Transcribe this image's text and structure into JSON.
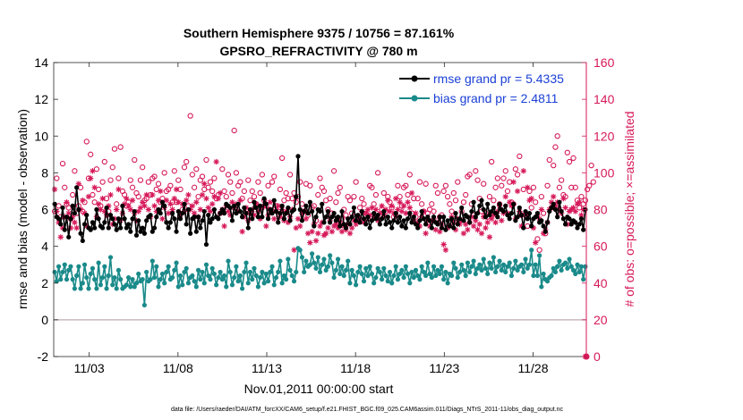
{
  "chart_data": {
    "type": "line",
    "title_line1": "Southern Hemisphere 9375 / 10756 = 87.161%",
    "title_line2": "GPSRO_REFRACTIVITY @ 780 m",
    "xlabel": "Nov.01,2011 00:00:00 start",
    "ylabel_left": "rmse and bias (model - observation)",
    "ylabel_right": "# of obs: o=possible; ×=assimilated",
    "footnote": "data file: /Users/raeder/DAI/ATM_forcXX/CAM6_setup/f.e21.FHIST_BGC.f09_025.CAM6assim.011/Diags_NTrS_2011-11/obs_diag_output.nc",
    "xlim": [
      0.0,
      30.0
    ],
    "ylim_left": [
      -2,
      14
    ],
    "ylim_right": [
      0,
      160
    ],
    "x_ticks": [
      2,
      7,
      12,
      17,
      22,
      27
    ],
    "x_tick_labels": [
      "11/03",
      "11/08",
      "11/13",
      "11/18",
      "11/23",
      "11/28"
    ],
    "y_left_ticks": [
      -2,
      0,
      2,
      4,
      6,
      8,
      10,
      12,
      14
    ],
    "y_right_ticks": [
      0,
      20,
      40,
      60,
      80,
      100,
      120,
      140,
      160
    ],
    "grid": false,
    "legend_position": "top-right",
    "colors": {
      "rmse": "#000000",
      "bias": "#1a8a8a",
      "obs": "#d6195a",
      "zero_line": "#c8b8c0",
      "axis": "#262626",
      "legend_text": "#1a3fd6"
    },
    "series": [
      {
        "name": "rmse grand pr = 5.4335",
        "key": "rmse",
        "axis": "left",
        "values": [
          6.3,
          5.6,
          5.5,
          5.2,
          6.1,
          4.9,
          5.6,
          4.5,
          5.5,
          6.2,
          5.8,
          7.2,
          6.0,
          4.7,
          4.3,
          5.2,
          5.7,
          5.0,
          4.9,
          5.3,
          5.0,
          6.0,
          5.5,
          5.1,
          5.0,
          5.3,
          6.1,
          5.0,
          5.7,
          5.5,
          5.2,
          4.9,
          5.5,
          5.0,
          6.2,
          5.5,
          5.0,
          5.2,
          4.8,
          5.5,
          5.9,
          4.6,
          5.4,
          4.8,
          5.0,
          4.7,
          5.4,
          5.6,
          5.7,
          4.8,
          5.0,
          5.6,
          6.0,
          5.8,
          6.4,
          6.2,
          5.3,
          5.0,
          5.3,
          5.8,
          5.5,
          4.8,
          5.9,
          5.5,
          5.8,
          6.3,
          5.2,
          6.0,
          4.7,
          5.5,
          5.6,
          4.8,
          5.6,
          5.0,
          5.4,
          5.9,
          4.1,
          5.7,
          5.3,
          5.5,
          6.0,
          5.6,
          5.5,
          5.8,
          6.0,
          5.8,
          6.3,
          6.2,
          6.1,
          5.4,
          6.2,
          5.8,
          6.3,
          5.9,
          5.6,
          6.1,
          5.8,
          5.0,
          6.0,
          5.5,
          6.4,
          6.1,
          5.6,
          6.2,
          5.6,
          6.6,
          6.3,
          5.5,
          6.0,
          5.8,
          6.5,
          5.9,
          5.3,
          5.8,
          6.2,
          5.5,
          5.8,
          6.1,
          5.4,
          5.9,
          6.0,
          6.7,
          8.9,
          6.0,
          5.4,
          5.9,
          6.2,
          5.8,
          6.4,
          5.9,
          5.1,
          5.6,
          6.0,
          5.9,
          6.3,
          5.3,
          5.6,
          5.9,
          5.3,
          5.6,
          5.8,
          5.4,
          5.6,
          5.1,
          5.9,
          5.2,
          5.0,
          5.5,
          5.2,
          5.6,
          6.1,
          5.4,
          5.7,
          5.3,
          5.9,
          5.5,
          5.2,
          5.6,
          5.0,
          5.4,
          5.8,
          5.5,
          5.7,
          5.2,
          5.5,
          5.9,
          5.2,
          5.6,
          5.3,
          5.0,
          5.4,
          5.8,
          5.3,
          5.6,
          5.1,
          5.4,
          5.0,
          5.5,
          5.8,
          5.3,
          5.6,
          5.2,
          5.0,
          5.4,
          5.9,
          5.5,
          5.2,
          5.6,
          5.4,
          5.0,
          5.6,
          5.3,
          5.2,
          5.6,
          5.0,
          5.6,
          4.9,
          5.4,
          5.1,
          5.5,
          5.0,
          5.8,
          5.2,
          5.5,
          6.1,
          5.4,
          5.7,
          5.6,
          5.3,
          5.9,
          6.4,
          5.6,
          5.8,
          6.2,
          6.5,
          6.0,
          5.6,
          6.3,
          5.7,
          5.9,
          6.1,
          5.8,
          5.6,
          6.3,
          6.0,
          5.9,
          6.2,
          5.7,
          5.5,
          5.8,
          6.3,
          5.4,
          5.6,
          6.1,
          5.7,
          5.0,
          5.9,
          5.5,
          5.8,
          5.1,
          5.5,
          5.6,
          5.8,
          5.3,
          5.4,
          5.1,
          4.8,
          5.3,
          5.9,
          6.1,
          6.3,
          6.0,
          5.6,
          6.4,
          5.9,
          5.5,
          5.2,
          5.6,
          5.5,
          5.2,
          5.4,
          5.3,
          5.0,
          5.2,
          5.5,
          4.9,
          6.0
        ]
      },
      {
        "name": "bias grand pr = 2.4811",
        "key": "bias",
        "axis": "left",
        "values": [
          2.6,
          2.1,
          2.9,
          2.2,
          2.6,
          3.0,
          2.2,
          2.7,
          2.9,
          2.2,
          1.7,
          2.4,
          2.9,
          1.7,
          2.0,
          3.0,
          2.3,
          1.7,
          2.5,
          2.8,
          2.2,
          1.7,
          3.1,
          1.9,
          2.3,
          2.9,
          1.7,
          2.4,
          3.4,
          1.9,
          2.3,
          1.7,
          2.7,
          2.2,
          1.7,
          1.8,
          1.9,
          2.3,
          1.8,
          2.2,
          1.8,
          2.0,
          2.5,
          2.1,
          2.2,
          0.8,
          2.6,
          2.1,
          2.2,
          3.2,
          2.3,
          2.9,
          1.8,
          2.2,
          2.5,
          2.0,
          2.6,
          2.9,
          2.2,
          2.3,
          2.7,
          3.1,
          1.8,
          2.4,
          1.9,
          2.6,
          2.8,
          2.0,
          2.3,
          2.4,
          2.1,
          1.8,
          2.7,
          2.2,
          2.6,
          2.0,
          3.0,
          2.4,
          2.2,
          2.8,
          2.5,
          1.9,
          2.3,
          2.6,
          2.2,
          2.4,
          1.8,
          3.2,
          2.6,
          1.9,
          2.3,
          2.9,
          2.1,
          2.4,
          1.7,
          2.6,
          3.1,
          2.0,
          2.6,
          2.2,
          2.8,
          2.4,
          1.8,
          2.3,
          2.6,
          2.0,
          2.5,
          2.1,
          2.6,
          2.9,
          1.9,
          2.3,
          2.6,
          3.2,
          2.0,
          2.4,
          2.2,
          3.3,
          2.7,
          2.4,
          2.1,
          2.6,
          3.9,
          3.8,
          3.4,
          2.6,
          3.2,
          2.9,
          3.0,
          3.6,
          3.1,
          2.8,
          3.4,
          2.6,
          3.0,
          3.3,
          2.7,
          2.9,
          3.5,
          3.1,
          2.3,
          2.7,
          3.3,
          2.5,
          2.9,
          2.4,
          2.7,
          3.2,
          2.0,
          2.7,
          2.4,
          1.9,
          2.6,
          2.9,
          2.5,
          2.1,
          2.8,
          2.4,
          2.9,
          2.5,
          2.0,
          2.3,
          2.8,
          2.6,
          2.2,
          2.8,
          2.4,
          2.1,
          2.6,
          2.0,
          2.4,
          2.9,
          2.2,
          2.5,
          2.7,
          2.3,
          2.9,
          2.5,
          2.0,
          2.6,
          2.3,
          2.7,
          2.4,
          2.2,
          2.9,
          2.6,
          2.4,
          3.1,
          2.5,
          2.3,
          2.9,
          2.4,
          2.7,
          2.5,
          2.9,
          2.2,
          2.6,
          2.0,
          2.5,
          2.4,
          3.1,
          2.8,
          2.3,
          2.6,
          3.0,
          2.7,
          2.4,
          3.1,
          2.6,
          2.9,
          3.2,
          2.5,
          2.8,
          3.0,
          2.7,
          3.3,
          2.8,
          2.5,
          3.1,
          2.8,
          3.4,
          2.6,
          2.9,
          3.2,
          2.7,
          3.0,
          2.6,
          2.9,
          3.1,
          2.4,
          2.8,
          3.2,
          2.7,
          2.9,
          3.0,
          2.6,
          3.3,
          2.8,
          3.0,
          3.8,
          2.4,
          3.0,
          2.4,
          3.5,
          1.8,
          2.5,
          2.2,
          2.1,
          2.3,
          2.4,
          2.8,
          2.6,
          2.9,
          3.2,
          2.7,
          3.0,
          3.1,
          2.8,
          3.3,
          2.9,
          2.7,
          2.5,
          3.0,
          2.6,
          2.9,
          2.2,
          2.9
        ]
      },
      {
        "name": "possible",
        "key": "possible",
        "axis": "right",
        "marker": "circle",
        "values": [
          79,
          97,
          82,
          76,
          105,
          92,
          83,
          81,
          75,
          88,
          101,
          78,
          82,
          92,
          79,
          84,
          117,
          97,
          110,
          88,
          84,
          102,
          91,
          82,
          95,
          106,
          86,
          79,
          96,
          103,
          113,
          83,
          97,
          114,
          90,
          88,
          82,
          84,
          96,
          92,
          107,
          89,
          87,
          96,
          103,
          85,
          86,
          95,
          88,
          97,
          98,
          91,
          94,
          84,
          86,
          100,
          90,
          91,
          93,
          84,
          101,
          84,
          96,
          91,
          80,
          103,
          106,
          82,
          131,
          99,
          92,
          102,
          87,
          96,
          98,
          91,
          107,
          92,
          95,
          90,
          97,
          86,
          88,
          78,
          102,
          90,
          87,
          99,
          95,
          89,
          123,
          100,
          93,
          95,
          86,
          90,
          80,
          96,
          85,
          90,
          87,
          83,
          95,
          89,
          99,
          85,
          82,
          93,
          80,
          95,
          98,
          82,
          79,
          91,
          108,
          85,
          89,
          86,
          99,
          86,
          89,
          84,
          87,
          95,
          83,
          79,
          94,
          77,
          93,
          81,
          82,
          74,
          88,
          97,
          92,
          90,
          85,
          80,
          86,
          78,
          101,
          84,
          89,
          92,
          75,
          80,
          77,
          87,
          85,
          78,
          87,
          95,
          76,
          81,
          86,
          83,
          78,
          75,
          93,
          92,
          83,
          88,
          100,
          77,
          80,
          89,
          79,
          87,
          84,
          81,
          76,
          77,
          93,
          87,
          82,
          92,
          93,
          88,
          99,
          78,
          86,
          76,
          86,
          95,
          83,
          79,
          94,
          78,
          80,
          83,
          79,
          93,
          89,
          76,
          77,
          90,
          93,
          87,
          83,
          79,
          89,
          85,
          95,
          74,
          79,
          84,
          88,
          98,
          99,
          83,
          77,
          101,
          96,
          86,
          79,
          94,
          78,
          76,
          87,
          106,
          85,
          92,
          97,
          83,
          93,
          97,
          101,
          90,
          95,
          84,
          83,
          102,
          99,
          109,
          77,
          91,
          77,
          71,
          90,
          81,
          92,
          84,
          64,
          58,
          87,
          78,
          67,
          93,
          107,
          81,
          104,
          114,
          120,
          92,
          96,
          88,
          87,
          111,
          106,
          92,
          108,
          92,
          85,
          81,
          87,
          83,
          85,
          91,
          93,
          104,
          95
        ]
      },
      {
        "name": "assimilated",
        "key": "assimilated",
        "axis": "right",
        "marker": "asterisk",
        "values": [
          91,
          79,
          73,
          65,
          70,
          76,
          84,
          78,
          70,
          76,
          73,
          70,
          94,
          80,
          85,
          78,
          71,
          87,
          97,
          101,
          92,
          76,
          83,
          80,
          86,
          79,
          77,
          82,
          88,
          72,
          75,
          80,
          91,
          74,
          78,
          83,
          86,
          82,
          80,
          85,
          78,
          74,
          79,
          81,
          84,
          82,
          88,
          80,
          76,
          88,
          82,
          79,
          85,
          90,
          75,
          81,
          85,
          78,
          83,
          80,
          86,
          91,
          84,
          77,
          83,
          79,
          85,
          88,
          80,
          82,
          78,
          84,
          76,
          80,
          88,
          94,
          86,
          81,
          79,
          83,
          87,
          106,
          86,
          89,
          80,
          71,
          82,
          79,
          77,
          84,
          81,
          83,
          79,
          85,
          68,
          76,
          81,
          74,
          78,
          80,
          77,
          83,
          79,
          75,
          81,
          82,
          71,
          77,
          84,
          79,
          75,
          79,
          82,
          76,
          80,
          74,
          79,
          73,
          76,
          80,
          58,
          70,
          75,
          71,
          78,
          79,
          75,
          67,
          62,
          68,
          72,
          63,
          67,
          71,
          73,
          66,
          67,
          70,
          74,
          68,
          71,
          72,
          70,
          73,
          68,
          71,
          69,
          72,
          67,
          70,
          74,
          72,
          76,
          75,
          79,
          73,
          78,
          80,
          77,
          81,
          76,
          80,
          74,
          78,
          82,
          77,
          80,
          85,
          79,
          82,
          78,
          86,
          80,
          84,
          79,
          82,
          78,
          84,
          81,
          89,
          74,
          78,
          73,
          71,
          76,
          79,
          67,
          74,
          71,
          74,
          75,
          69,
          73,
          68,
          72,
          61,
          58,
          70,
          71,
          76,
          73,
          69,
          75,
          72,
          74,
          67,
          72,
          69,
          73,
          76,
          71,
          74,
          69,
          72,
          67,
          76,
          70,
          73,
          65,
          75,
          77,
          73,
          79,
          82,
          74,
          78,
          87,
          78,
          84,
          82,
          95,
          75,
          90,
          79,
          71,
          101,
          78,
          92,
          85,
          86,
          70,
          62,
          77,
          75,
          80,
          67,
          69,
          73,
          80,
          84,
          87,
          82,
          84,
          80,
          78,
          86,
          81,
          72,
          79,
          80,
          81,
          79,
          83,
          84,
          77,
          80,
          0
        ]
      }
    ]
  }
}
